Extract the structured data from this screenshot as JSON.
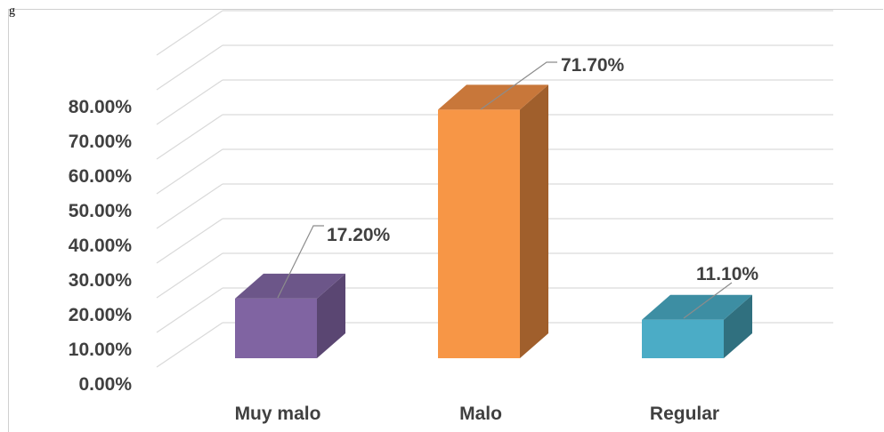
{
  "header": {
    "cutoff_text": "g"
  },
  "chart_data": {
    "type": "bar",
    "categories": [
      "Muy malo",
      "Malo",
      "Regular"
    ],
    "values": [
      17.2,
      71.7,
      11.1
    ],
    "data_labels": [
      "17.20%",
      "71.70%",
      "11.10%"
    ],
    "yticks": [
      "0.00%",
      "10.00%",
      "20.00%",
      "30.00%",
      "40.00%",
      "50.00%",
      "60.00%",
      "70.00%",
      "80.00%"
    ],
    "ylim": [
      0,
      90
    ],
    "grid": true,
    "legend": "none",
    "three_d": true,
    "colors": {
      "Muy malo": {
        "front": "#8064a2",
        "side": "#5a4672",
        "top": "#6c5689"
      },
      "Malo": {
        "front": "#f79646",
        "side": "#a05f2c",
        "top": "#c8773a"
      },
      "Regular": {
        "front": "#4bacc6",
        "side": "#30707f",
        "top": "#3d8ea3"
      }
    }
  }
}
